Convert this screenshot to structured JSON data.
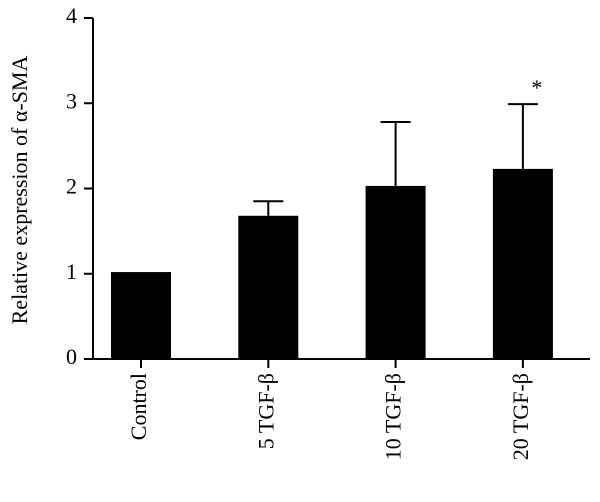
{
  "chart_data": {
    "type": "bar",
    "y_label": "Relative expression of α-SMA",
    "categories": [
      "Control",
      "5 TGF-β",
      "10 TGF-β",
      "20 TGF-β"
    ],
    "values": [
      1.02,
      1.68,
      2.03,
      2.23
    ],
    "errors": [
      null,
      0.17,
      0.75,
      0.76
    ],
    "color": "#000000",
    "ylim": [
      0,
      4
    ],
    "yticks": [
      0,
      1,
      2,
      3,
      4
    ],
    "annotation": "*"
  }
}
